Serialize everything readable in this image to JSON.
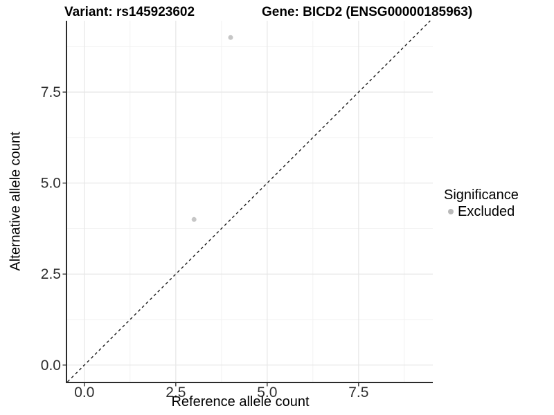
{
  "header": {
    "variant_title": "Variant: rs145923602",
    "gene_title": "Gene: BICD2 (ENSG00000185963)"
  },
  "chart_data": {
    "type": "scatter",
    "title": "Variant: rs145923602   Gene: BICD2 (ENSG00000185963)",
    "xlabel": "Reference allele count",
    "ylabel": "Alternative allele count",
    "xlim": [
      -0.47,
      9.53
    ],
    "ylim": [
      -0.46,
      9.46
    ],
    "xticks": [
      0,
      2.5,
      5,
      7.5
    ],
    "xtick_labels": [
      "0.0",
      "2.5",
      "5.0",
      "7.5"
    ],
    "yticks": [
      0,
      2.5,
      5,
      7.5
    ],
    "ytick_labels": [
      "0.0",
      "2.5",
      "5.0",
      "7.5"
    ],
    "xminor": [
      1.25,
      3.75,
      6.25,
      8.75
    ],
    "yminor": [
      1.25,
      3.75,
      6.25,
      8.75
    ],
    "grid": "major+minor",
    "legend_position": "right",
    "reference_line": {
      "type": "identity y=x",
      "style": "dashed",
      "color": "#1a1a1a"
    },
    "series": [
      {
        "name": "Excluded",
        "marker": "circle",
        "color": "#c6c6c6",
        "points": [
          {
            "x": 4,
            "y": 9
          },
          {
            "x": 3,
            "y": 4
          }
        ]
      }
    ],
    "legend": {
      "title": "Significance",
      "entries": [
        {
          "label": "Excluded",
          "color": "#b9b9b9"
        }
      ]
    },
    "colors": {
      "background": "#ffffff",
      "grid_major": "#e6e6e6",
      "grid_minor": "#f2f2f2",
      "axis_line": "#2b2b2b",
      "tick_mark": "#333333",
      "tick_label": "#2e2e2e",
      "text": "#000000"
    }
  }
}
